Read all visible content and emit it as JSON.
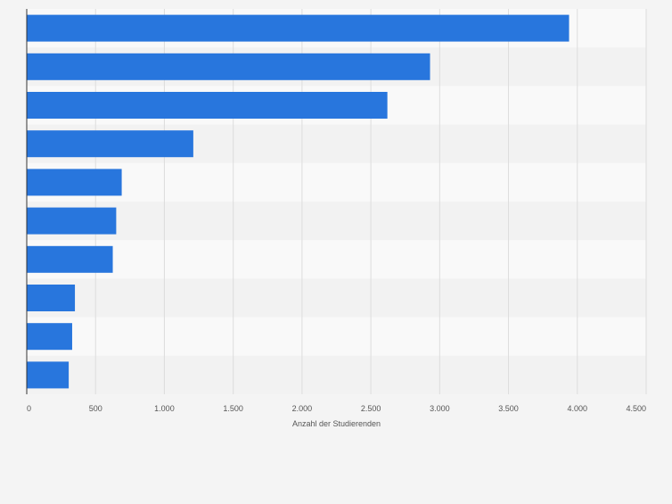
{
  "colors": {
    "page_background": "#f4f4f4",
    "band_light": "#f9f9f9",
    "band_dark": "#f2f2f2",
    "gridline": "#dddddd",
    "bar": "#2876dd",
    "axis_line": "#333333",
    "tick_label": "#555555"
  },
  "chart_data": {
    "type": "bar",
    "orientation": "horizontal",
    "categories": [
      "",
      "",
      "",
      "",
      "",
      "",
      "",
      "",
      "",
      ""
    ],
    "series": [
      {
        "values": [
          3940,
          2930,
          2620,
          1210,
          690,
          650,
          625,
          350,
          330,
          305
        ]
      }
    ],
    "title": "",
    "xlabel": "Anzahl der Studierenden",
    "ylabel": "",
    "xlim": [
      0,
      4500
    ],
    "xticks": [
      0,
      500,
      1000,
      1500,
      2000,
      2500,
      3000,
      3500,
      4000,
      4500
    ],
    "xtick_labels": [
      "0",
      "500",
      "1.000",
      "1.500",
      "2.000",
      "2.500",
      "3.000",
      "3.500",
      "4.000",
      "4.500"
    ],
    "grid": true,
    "legend": "none"
  }
}
